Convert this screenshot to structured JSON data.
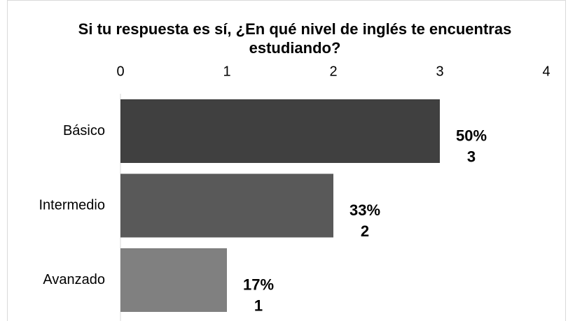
{
  "chart_data": {
    "type": "hbar",
    "title": "Si tu respuesta es sí, ¿En qué nivel de inglés te encuentras estudiando?",
    "categories": [
      "Básico",
      "Intermedio",
      "Avanzado"
    ],
    "values": [
      3,
      2,
      1
    ],
    "percent_labels": [
      "50%",
      "33%",
      "17%"
    ],
    "colors": [
      "#404040",
      "#595959",
      "#808080"
    ],
    "xlim": [
      0,
      4
    ],
    "xticks": [
      0,
      1,
      2,
      3,
      4
    ],
    "grid": false
  }
}
